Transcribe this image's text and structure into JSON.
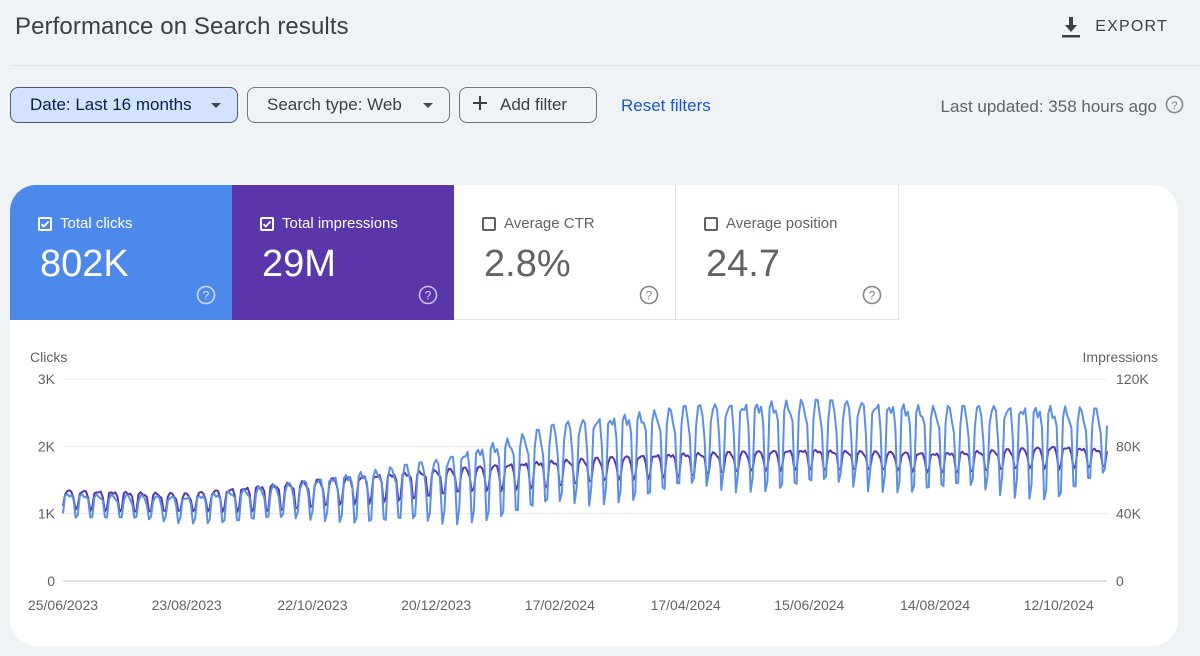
{
  "header": {
    "title": "Performance on Search results",
    "export_label": "EXPORT"
  },
  "filters": {
    "date_label": "Date: Last 16 months",
    "search_type_label": "Search type: Web",
    "add_filter_label": "Add filter",
    "reset_label": "Reset filters",
    "last_updated": "Last updated: 358 hours ago"
  },
  "metrics": [
    {
      "label": "Total clicks",
      "value": "802K",
      "checked": true,
      "color": "#4d89ea"
    },
    {
      "label": "Total impressions",
      "value": "29M",
      "checked": true,
      "color": "#5b36ab"
    },
    {
      "label": "Average CTR",
      "value": "2.8%",
      "checked": false
    },
    {
      "label": "Average position",
      "value": "24.7",
      "checked": false
    }
  ],
  "chart_data": {
    "type": "line",
    "ylabel_left": "Clicks",
    "ylabel_right": "Impressions",
    "y_left_ticks": [
      "0",
      "1K",
      "2K",
      "3K"
    ],
    "y_right_ticks": [
      "0",
      "40K",
      "80K",
      "120K"
    ],
    "ylim_left": [
      0,
      3000
    ],
    "ylim_right": [
      0,
      120000
    ],
    "x_ticks": [
      "25/06/2023",
      "23/08/2023",
      "22/10/2023",
      "20/12/2023",
      "17/02/2024",
      "17/04/2024",
      "15/06/2024",
      "14/08/2024",
      "12/10/2024"
    ],
    "x_range": [
      "2023-06-25",
      "2024-11-04"
    ],
    "grid": true,
    "series": [
      {
        "name": "Clicks",
        "axis": "left",
        "color": "#5b8fe6",
        "weekly_lows": [
          [
            "2023-06-25",
            950
          ],
          [
            "2023-08-23",
            850
          ],
          [
            "2023-10-22",
            900
          ],
          [
            "2023-12-20",
            800
          ],
          [
            "2024-02-17",
            1050
          ],
          [
            "2024-04-17",
            1300
          ],
          [
            "2024-06-15",
            1350
          ],
          [
            "2024-08-14",
            1300
          ],
          [
            "2024-10-12",
            1200
          ],
          [
            "2024-11-04",
            1500
          ]
        ],
        "weekly_highs": [
          [
            "2023-06-25",
            1300
          ],
          [
            "2023-08-23",
            1250
          ],
          [
            "2023-10-22",
            1500
          ],
          [
            "2023-12-20",
            1800
          ],
          [
            "2024-02-17",
            2350
          ],
          [
            "2024-04-17",
            2600
          ],
          [
            "2024-06-15",
            2700
          ],
          [
            "2024-08-14",
            2600
          ],
          [
            "2024-10-12",
            2600
          ],
          [
            "2024-11-04",
            2550
          ]
        ]
      },
      {
        "name": "Impressions",
        "axis": "right",
        "color": "#5a35a8",
        "weekly_lows": [
          [
            "2023-06-25",
            42000
          ],
          [
            "2023-08-23",
            40000
          ],
          [
            "2023-10-22",
            42000
          ],
          [
            "2023-12-20",
            50000
          ],
          [
            "2024-02-17",
            56000
          ],
          [
            "2024-04-17",
            62000
          ],
          [
            "2024-06-15",
            66000
          ],
          [
            "2024-08-14",
            64000
          ],
          [
            "2024-10-12",
            66000
          ],
          [
            "2024-11-04",
            68000
          ]
        ],
        "weekly_highs": [
          [
            "2023-06-25",
            54000
          ],
          [
            "2023-08-23",
            52000
          ],
          [
            "2023-10-22",
            60000
          ],
          [
            "2023-12-20",
            66000
          ],
          [
            "2024-02-17",
            72000
          ],
          [
            "2024-04-17",
            76000
          ],
          [
            "2024-06-15",
            78000
          ],
          [
            "2024-08-14",
            76000
          ],
          [
            "2024-10-12",
            80000
          ],
          [
            "2024-11-04",
            78000
          ]
        ]
      }
    ]
  }
}
